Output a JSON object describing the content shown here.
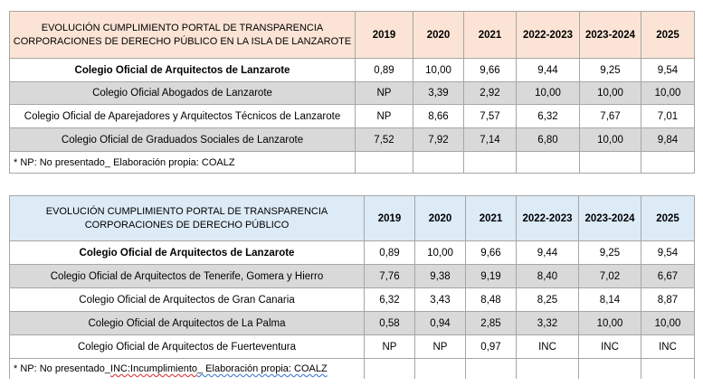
{
  "table1": {
    "title_line1": "EVOLUCIÓN CUMPLIMIENTO  PORTAL DE TRANSPARENCIA",
    "title_line2": "CORPORACIONES DE DERECHO PÚBLICO EN LA ISLA DE LANZAROTE",
    "years": [
      "2019",
      "2020",
      "2021",
      "2022-2023",
      "2023-2024",
      "2025"
    ],
    "rows": [
      {
        "name": "Colegio Oficial de Arquitectos de Lanzarote",
        "values": [
          "0,89",
          "10,00",
          "9,66",
          "9,44",
          "9,25",
          "9,54"
        ]
      },
      {
        "name": "Colegio Oficial Abogados de Lanzarote",
        "values": [
          "NP",
          "3,39",
          "2,92",
          "10,00",
          "10,00",
          "10,00"
        ]
      },
      {
        "name": "Colegio Oficial de Aparejadores y  Arquitectos Técnicos de Lanzarote",
        "values": [
          "NP",
          "8,66",
          "7,57",
          "6,32",
          "7,67",
          "7,01"
        ]
      },
      {
        "name": "Colegio Oficial de Graduados Sociales de Lanzarote",
        "values": [
          "7,52",
          "7,92",
          "7,14",
          "6,80",
          "10,00",
          "9,84"
        ]
      }
    ],
    "note": "* NP: No presentado_ Elaboración propia: COALZ"
  },
  "table2": {
    "title_line1": "EVOLUCIÓN CUMPLIMIENTO  PORTAL DE TRANSPARENCIA",
    "title_line2": "CORPORACIONES DE DERECHO PÚBLICO",
    "years": [
      "2019",
      "2020",
      "2021",
      "2022-2023",
      "2023-2024",
      "2025"
    ],
    "rows": [
      {
        "name": "Colegio Oficial de Arquitectos de Lanzarote",
        "values": [
          "0,89",
          "10,00",
          "9,66",
          "9,44",
          "9,25",
          "9,54"
        ]
      },
      {
        "name": "Colegio Oficial de Arquitectos de Tenerife, Gomera y Hierro",
        "values": [
          "7,76",
          "9,38",
          "9,19",
          "8,40",
          "7,02",
          "6,67"
        ]
      },
      {
        "name": "Colegio Oficial de Arquitectos de Gran Canaria",
        "values": [
          "6,32",
          "3,43",
          "8,48",
          "8,25",
          "8,14",
          "8,87"
        ]
      },
      {
        "name": "Colegio Oficial de Arquitectos de La Palma",
        "values": [
          "0,58",
          "0,94",
          "2,85",
          "3,32",
          "10,00",
          "10,00"
        ]
      },
      {
        "name": "Colegio Oficial de Arquitectos de Fuerteventura",
        "values": [
          "NP",
          "NP",
          "0,97",
          "INC",
          "INC",
          "INC"
        ]
      }
    ],
    "note_part1": "* NP: No presentado_",
    "note_part2": "INC:Incumplimiento",
    "note_part3": "_ Elaboración propia: COALZ"
  },
  "colors": {
    "header1_bg": "#fbe4d5",
    "header2_bg": "#ddebf7",
    "stripe_bg": "#d9d9d9",
    "border": "#a6a6a6"
  }
}
